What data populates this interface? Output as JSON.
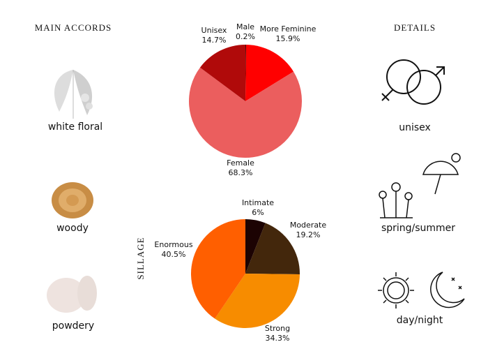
{
  "main_accords": {
    "title": "MAIN ACCORDS",
    "items": [
      "white floral",
      "woody",
      "powdery"
    ]
  },
  "details": {
    "title": "DETAILS",
    "items": [
      "unisex",
      "spring/summer",
      "day/night"
    ]
  },
  "chart_data": [
    {
      "type": "pie",
      "categories": [
        "Male",
        "More Feminine",
        "Female",
        "Unisex"
      ],
      "values": [
        0.2,
        15.9,
        68.3,
        14.7
      ],
      "value_labels": [
        "0.2%",
        "15.9%",
        "68.3%",
        "14.7%"
      ],
      "colors": [
        "#4a0000",
        "#ff0000",
        "#eb5e5e",
        "#b00a0a"
      ]
    },
    {
      "type": "pie",
      "ylabel": "SILLAGE",
      "categories": [
        "Intimate",
        "Moderate",
        "Strong",
        "Enormous"
      ],
      "values": [
        6,
        19.2,
        34.3,
        40.5
      ],
      "value_labels": [
        "6%",
        "19.2%",
        "34.3%",
        "40.5%"
      ],
      "colors": [
        "#1c0303",
        "#43270c",
        "#f78c00",
        "#ff5f00"
      ]
    }
  ]
}
